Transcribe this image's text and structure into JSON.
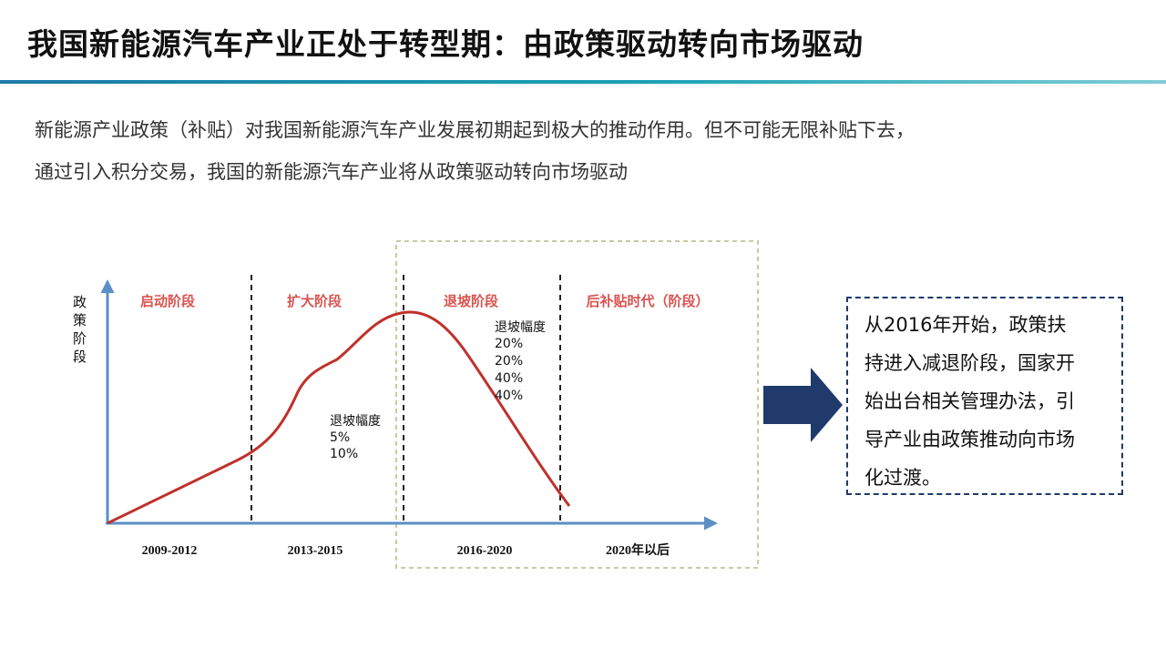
{
  "slide": {
    "title": "我国新能源汽车产业正处于转型期：由政策驱动转向市场驱动",
    "intro_lines": [
      "新能源产业政策（补贴）对我国新能源汽车产业发展初期起到极大的推动作用。但不可能无限补贴下去，",
      "通过引入积分交易，我国的新能源汽车产业将从政策驱动转向市场驱动"
    ]
  },
  "diagram": {
    "y_axis_label": [
      "政",
      "策",
      "阶",
      "段"
    ],
    "phases": [
      "启动阶段",
      "扩大阶段",
      "退坡阶段",
      "后补贴时代（阶段）"
    ],
    "periods": [
      "2009-2012",
      "2013-2015",
      "2016-2020",
      "2020年以后"
    ],
    "early_decline": {
      "title": "退坡幅度",
      "values": [
        "5%",
        "10%"
      ]
    },
    "later_decline": {
      "title": "退坡幅度",
      "values": [
        "20%",
        "20%",
        "40%",
        "40%"
      ]
    },
    "colors": {
      "axis": "#5b8fc7",
      "curve": "#c0312b",
      "phase_text": "#d9534f",
      "highlight_border": "#c9c9a8",
      "arrow": "#1f3a6b"
    }
  },
  "callout": {
    "lines": [
      "从2016年开始，政策扶",
      "持进入减退阶段，国家开",
      "始出台相关管理办法，引",
      "导产业由政策推动向市场",
      "化过渡。"
    ]
  }
}
